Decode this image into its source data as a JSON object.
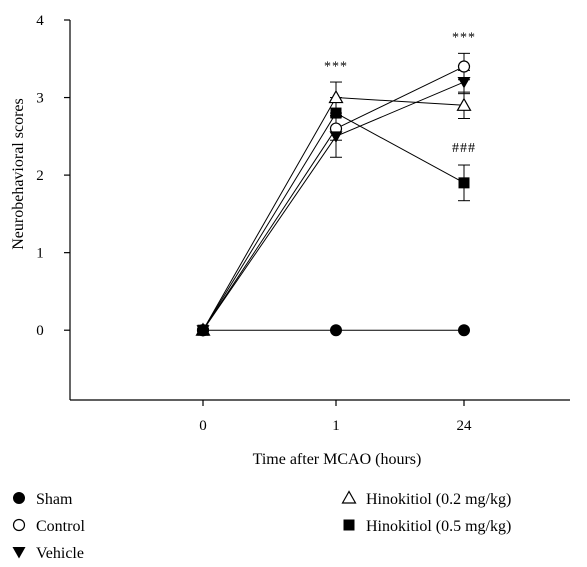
{
  "chart_data": {
    "type": "line",
    "xlabel": "Time after MCAO (hours)",
    "ylabel": "Neurobehavioral scores",
    "categories": [
      "0",
      "1",
      "24"
    ],
    "ylim": [
      -0.9,
      4
    ],
    "yticks": [
      0,
      1,
      2,
      3,
      4
    ],
    "grid": false,
    "legend_placement": "bottom",
    "series": [
      {
        "name": "Sham",
        "marker": "filled-circle",
        "values": [
          0,
          0,
          0
        ],
        "errors": [
          0,
          0,
          0
        ]
      },
      {
        "name": "Control",
        "marker": "open-circle",
        "values": [
          0,
          2.6,
          3.4
        ],
        "errors": [
          0,
          0.15,
          0.17
        ]
      },
      {
        "name": "Vehicle",
        "marker": "filled-triangle-down",
        "values": [
          0,
          2.5,
          3.2
        ],
        "errors": [
          0,
          0.27,
          0.15
        ]
      },
      {
        "name": "Hinokitiol (0.2 mg/kg)",
        "marker": "open-triangle-up",
        "values": [
          0,
          3.0,
          2.9
        ],
        "errors": [
          0,
          0.2,
          0.17
        ]
      },
      {
        "name": "Hinokitiol (0.5 mg/kg)",
        "marker": "filled-square",
        "values": [
          0,
          2.8,
          1.9
        ],
        "errors": [
          0,
          0.2,
          0.23
        ]
      }
    ],
    "annotations": [
      {
        "text": "***",
        "x": "1",
        "y": 3.35
      },
      {
        "text": "***",
        "x": "24",
        "y": 3.72
      },
      {
        "text": "###",
        "x": "24",
        "y": 2.3
      }
    ]
  }
}
